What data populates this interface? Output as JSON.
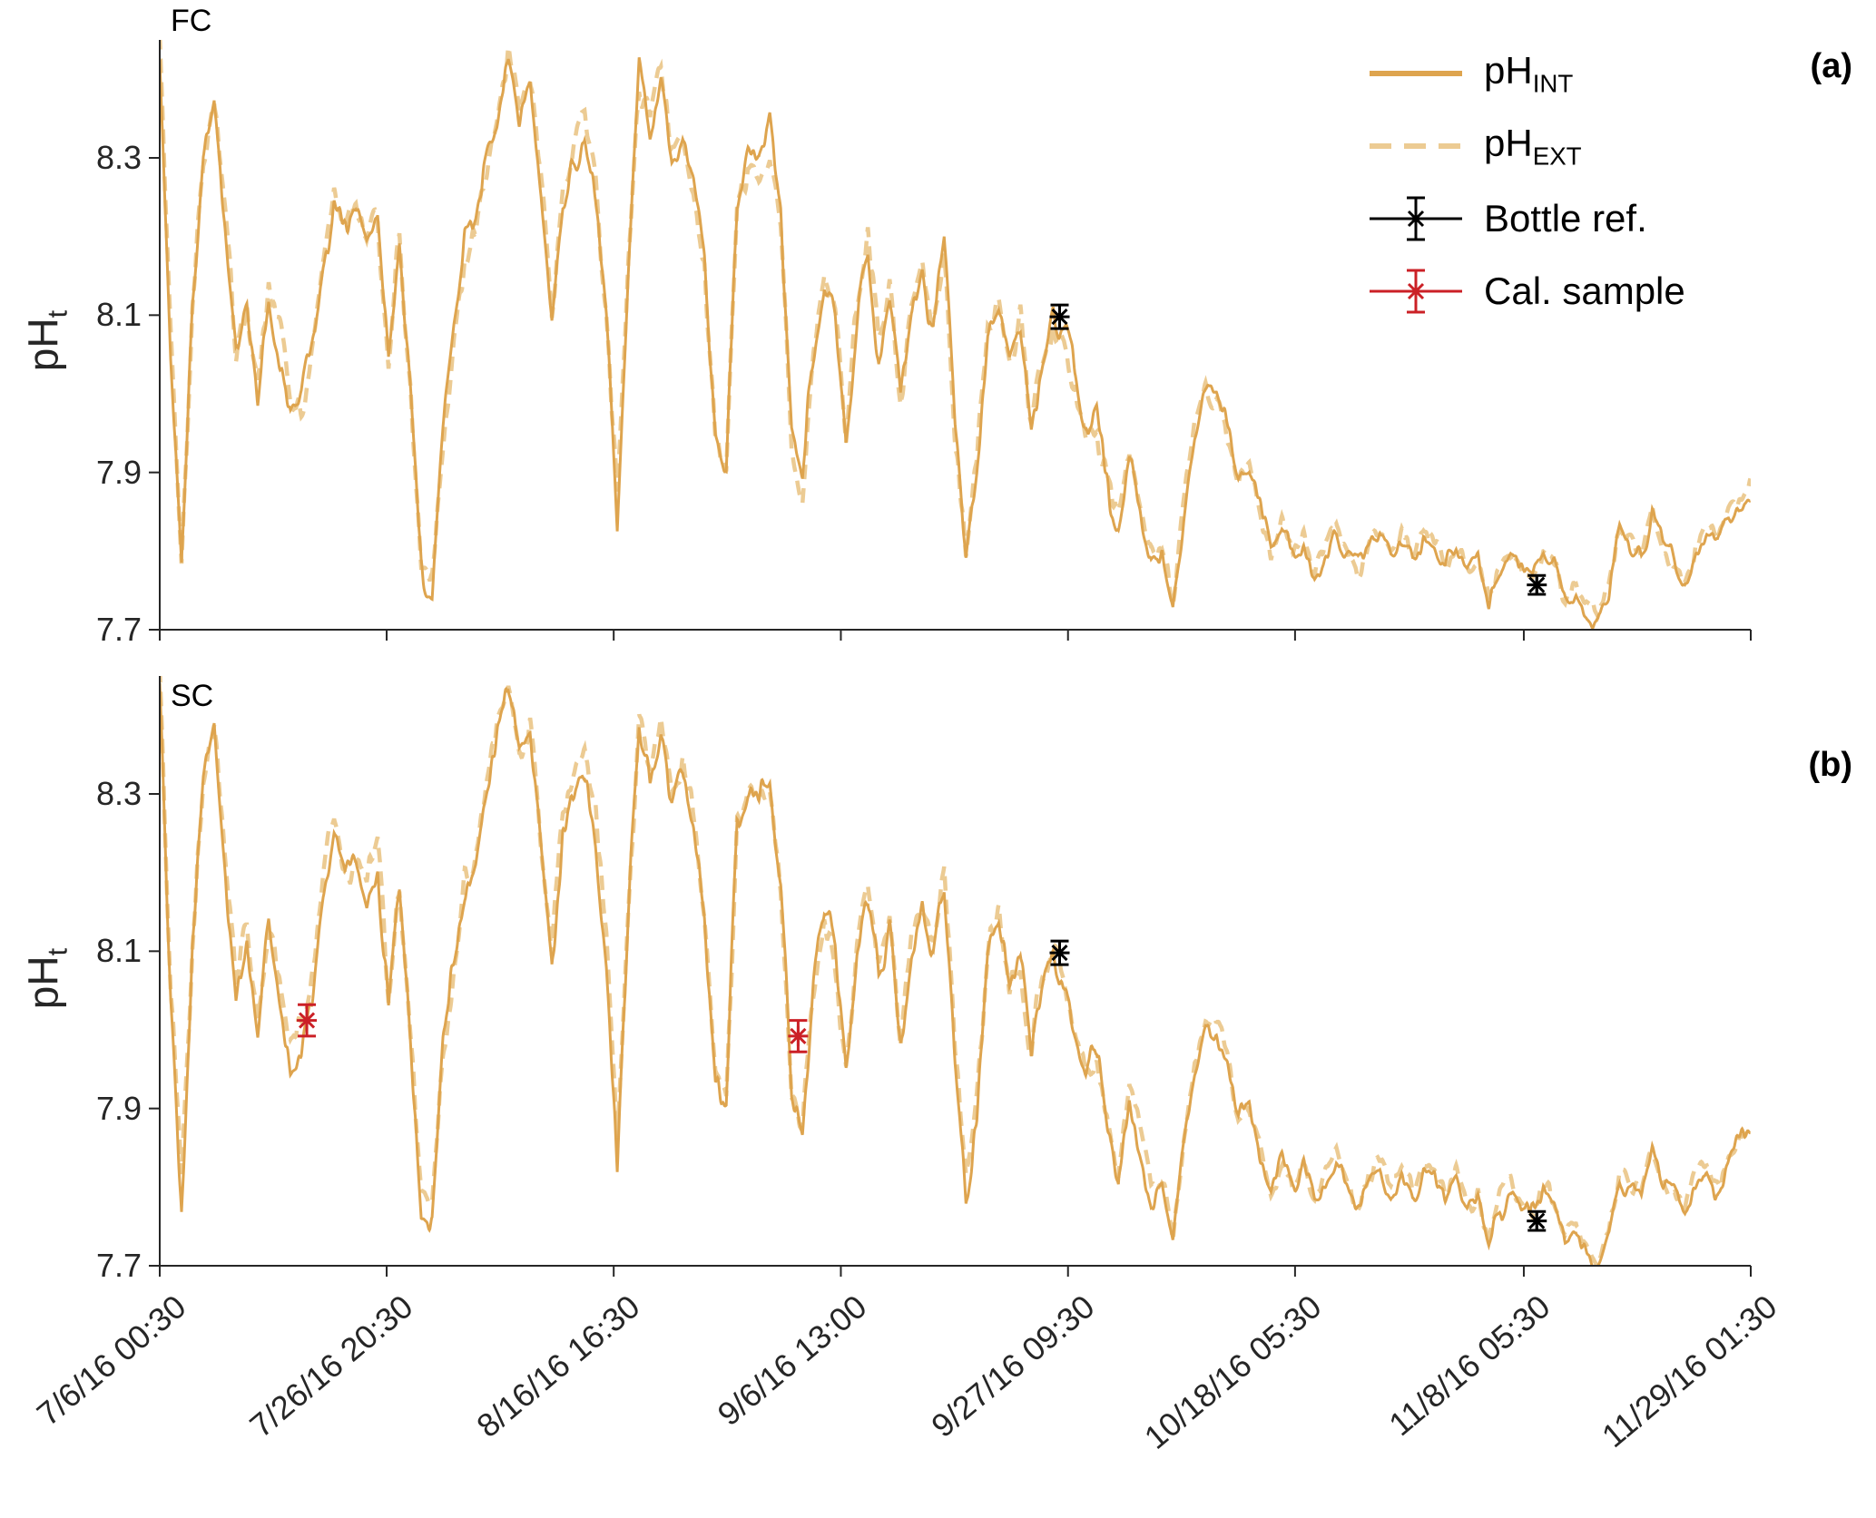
{
  "chart_data": {
    "type": "line",
    "title": "",
    "x": {
      "tick_labels": [
        "7/6/16 00:30",
        "7/26/16 20:30",
        "8/16/16 16:30",
        "9/6/16 13:00",
        "9/27/16 09:30",
        "10/18/16 05:30",
        "11/8/16 05:30",
        "11/29/16 01:30"
      ],
      "tick_days": [
        0,
        20.83,
        41.67,
        62.52,
        83.37,
        104.21,
        125.21,
        146.04
      ],
      "range_days": [
        0,
        146.04
      ],
      "grid": false
    },
    "y": {
      "label": "pH",
      "label_sub": "t",
      "ticks": [
        7.7,
        7.9,
        8.1,
        8.3
      ],
      "range": [
        7.7,
        8.45
      ]
    },
    "panels": [
      {
        "id": "fc",
        "title": "FC",
        "corner_label": "(a)",
        "bottle_ref": [
          {
            "day": 82.6,
            "ph": 8.098,
            "err": 0.015
          },
          {
            "day": 126.4,
            "ph": 7.757,
            "err": 0.012
          }
        ],
        "cal_sample": []
      },
      {
        "id": "sc",
        "title": "SC",
        "corner_label": "(b)",
        "bottle_ref": [
          {
            "day": 82.6,
            "ph": 8.098,
            "err": 0.015
          },
          {
            "day": 126.4,
            "ph": 7.757,
            "err": 0.012
          }
        ],
        "cal_sample": [
          {
            "day": 13.5,
            "ph": 8.012,
            "err": 0.02
          },
          {
            "day": 58.6,
            "ph": 7.992,
            "err": 0.02
          }
        ]
      }
    ],
    "series": {
      "sample_step_days": 0.05,
      "ph_int_daily": [
        8.43,
        8.05,
        7.78,
        8.1,
        8.3,
        8.38,
        8.22,
        8.05,
        8.12,
        8.02,
        8.14,
        8.06,
        7.97,
        7.99,
        8.06,
        8.18,
        8.25,
        8.2,
        8.23,
        8.18,
        8.22,
        8.03,
        8.18,
        8.0,
        7.78,
        7.76,
        7.95,
        8.08,
        8.18,
        8.22,
        8.3,
        8.38,
        8.43,
        8.35,
        8.38,
        8.25,
        8.08,
        8.25,
        8.3,
        8.33,
        8.25,
        8.1,
        7.84,
        8.15,
        8.4,
        8.32,
        8.38,
        8.28,
        8.32,
        8.25,
        8.15,
        7.95,
        7.9,
        8.25,
        8.3,
        8.28,
        8.32,
        8.2,
        7.93,
        7.88,
        8.05,
        8.15,
        8.1,
        7.95,
        8.1,
        8.18,
        8.05,
        8.12,
        7.98,
        8.1,
        8.15,
        8.08,
        8.18,
        7.95,
        7.78,
        7.9,
        8.08,
        8.12,
        8.05,
        8.1,
        7.98,
        8.05,
        8.1,
        8.08,
        8.0,
        7.95,
        7.97,
        7.88,
        7.82,
        7.92,
        7.85,
        7.78,
        7.8,
        7.73,
        7.85,
        7.95,
        8.0,
        7.99,
        7.95,
        7.88,
        7.9,
        7.85,
        7.8,
        7.83,
        7.8,
        7.82,
        7.78,
        7.8,
        7.83,
        7.79,
        7.77,
        7.8,
        7.82,
        7.79,
        7.81,
        7.78,
        7.82,
        7.81,
        7.78,
        7.8,
        7.77,
        7.79,
        7.73,
        7.77,
        7.79,
        7.77,
        7.76,
        7.8,
        7.78,
        7.74,
        7.76,
        7.72,
        7.7,
        7.74,
        7.82,
        7.8,
        7.78,
        7.84,
        7.8,
        7.78,
        7.76,
        7.8,
        7.82,
        7.8,
        7.84,
        7.86,
        7.87
      ]
    },
    "legend": {
      "items": [
        {
          "label": "pH",
          "sub": "INT",
          "icon": "solid-line"
        },
        {
          "label": "pH",
          "sub": "EXT",
          "icon": "dashed-line"
        },
        {
          "label": "Bottle ref.",
          "sub": "",
          "icon": "black-errorbar-asterisk"
        },
        {
          "label": "Cal. sample",
          "sub": "",
          "icon": "red-errorbar-asterisk"
        }
      ],
      "position": "top-right"
    },
    "colors": {
      "int": "#DEA44E",
      "ext": "#ECCB93",
      "bottle": "#000000",
      "cal": "#CB2026",
      "axis": "#262626",
      "text": "#262626"
    }
  }
}
